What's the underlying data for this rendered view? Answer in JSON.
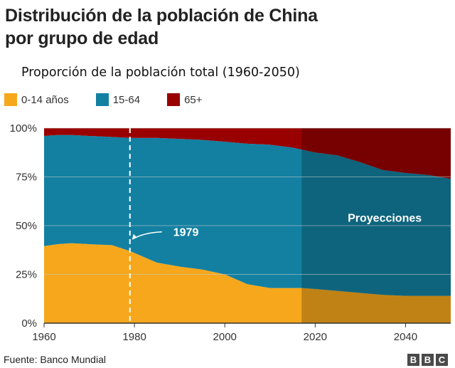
{
  "header": {
    "title_line1": "Distribución de la población de China",
    "title_line2": "por grupo de edad"
  },
  "footer": {
    "source": "Fuente: Banco Mundial",
    "logo_letters": [
      "B",
      "B",
      "C"
    ]
  },
  "chart_data": {
    "type": "area",
    "stacked": true,
    "title": "Distribución de la población de China por grupo de edad",
    "subtitle": "Proporción de la población total (1960-2050)",
    "xlabel": "",
    "ylabel": "",
    "xlim": [
      1960,
      2050
    ],
    "ylim": [
      0,
      100
    ],
    "x_ticks": [
      1960,
      1980,
      2000,
      2020,
      2040
    ],
    "y_ticks": [
      0,
      25,
      50,
      75,
      100
    ],
    "y_tick_labels": [
      "0%",
      "25%",
      "50%",
      "75%",
      "100%"
    ],
    "grid": true,
    "legend_position": "top-left",
    "x": [
      1960,
      1963,
      1966,
      1970,
      1975,
      1979,
      1982,
      1985,
      1990,
      1995,
      2000,
      2005,
      2010,
      2015,
      2017,
      2020,
      2025,
      2030,
      2035,
      2040,
      2045,
      2050
    ],
    "series": [
      {
        "name": "0-14 años",
        "color": "#f6a71c",
        "values": [
          39.5,
          40.5,
          41,
          40.5,
          40,
          37,
          34,
          31,
          29,
          27.5,
          25,
          20,
          18,
          18,
          18,
          17.5,
          16.5,
          15.5,
          14.5,
          14,
          14,
          14
        ]
      },
      {
        "name": "15-64",
        "color": "#1380a1",
        "values": [
          56.5,
          56,
          55.5,
          55.5,
          55.5,
          58,
          61,
          64,
          65.5,
          66.5,
          68,
          72,
          73.5,
          72,
          71,
          70,
          69.5,
          67,
          64,
          63,
          62,
          60
        ]
      },
      {
        "name": "65+",
        "color": "#990000",
        "values": [
          4,
          3.5,
          3.5,
          4,
          4.5,
          5,
          5,
          5,
          5.5,
          6,
          7,
          8,
          8.5,
          10,
          11,
          12.5,
          14,
          17.5,
          21.5,
          23,
          24,
          26
        ]
      }
    ],
    "projection_start": 2017,
    "projection_label": "Proyecciones",
    "annotations": [
      {
        "label": "1979",
        "x": 1979,
        "y": 45
      }
    ]
  }
}
